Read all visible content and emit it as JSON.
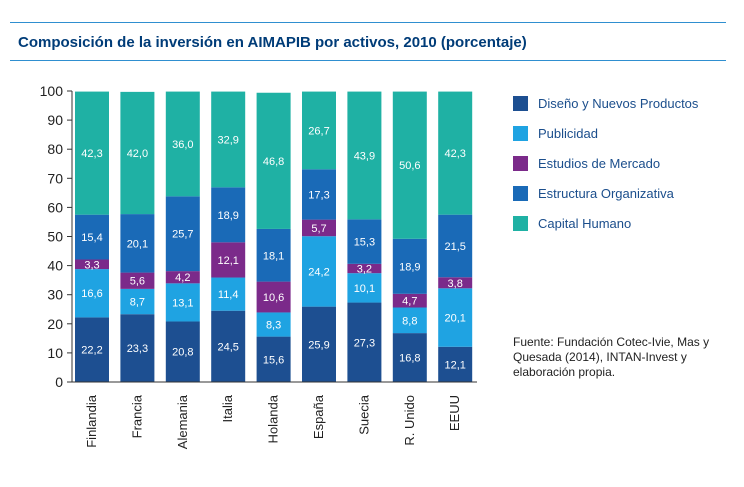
{
  "title": "Composición de la inversión en AIMAPIB por activos, 2010 (porcentaje)",
  "source": "Fuente: Fundación Cotec-Ivie, Mas y Quesada (2014), INTAN-Invest y elaboración propia.",
  "colors": {
    "rule": "#2f8fd0",
    "title": "#003c78",
    "legend_text": "#1b4e8c",
    "axis": "#333333"
  },
  "chart_data": {
    "type": "bar",
    "stacked": true,
    "title": "Composición de la inversión en AIMAPIB por activos, 2010 (porcentaje)",
    "categories": [
      "Finlandia",
      "Francia",
      "Alemania",
      "Italia",
      "Holanda",
      "España",
      "Suecia",
      "R. Unido",
      "EEUU"
    ],
    "ylim": [
      0,
      100
    ],
    "yticks": [
      0,
      10,
      20,
      30,
      40,
      50,
      60,
      70,
      80,
      90,
      100
    ],
    "grid": false,
    "legend_position": "right",
    "series": [
      {
        "name": "Diseño y Nuevos Productos",
        "color": "#1d4f91",
        "values": [
          22.2,
          23.3,
          20.8,
          24.5,
          15.6,
          25.9,
          27.3,
          16.8,
          12.1
        ],
        "labels": [
          "22,2",
          "23,3",
          "20,8",
          "24,5",
          "15,6",
          "25,9",
          "27,3",
          "16,8",
          "12,1"
        ]
      },
      {
        "name": "Publicidad",
        "color": "#1fa3e2",
        "values": [
          16.6,
          8.7,
          13.1,
          11.4,
          8.3,
          24.2,
          10.1,
          8.8,
          20.1
        ],
        "labels": [
          "16,6",
          "8,7",
          "13,1",
          "11,4",
          "8,3",
          "24,2",
          "10,1",
          "8,8",
          "20,1"
        ]
      },
      {
        "name": "Estudios de Mercado",
        "color": "#7b2a8a",
        "values": [
          3.3,
          5.6,
          4.2,
          12.1,
          10.6,
          5.7,
          3.2,
          4.7,
          3.8
        ],
        "labels": [
          "3,3",
          "5,6",
          "4,2",
          "12,1",
          "10,6",
          "5,7",
          "3,2",
          "4,7",
          "3,8"
        ]
      },
      {
        "name": "Estructura  Organizativa",
        "color": "#1a6ab7",
        "values": [
          15.4,
          20.1,
          25.7,
          18.9,
          18.1,
          17.3,
          15.3,
          18.9,
          21.5
        ],
        "labels": [
          "15,4",
          "20,1",
          "25,7",
          "18,9",
          "18,1",
          "17,3",
          "15,3",
          "18,9",
          "21,5"
        ]
      },
      {
        "name": "Capital Humano",
        "color": "#1fb1a4",
        "values": [
          42.3,
          42.0,
          36.0,
          32.9,
          46.8,
          26.7,
          43.9,
          50.6,
          42.3
        ],
        "labels": [
          "42,3",
          "42,0",
          "36,0",
          "32,9",
          "46,8",
          "26,7",
          "43,9",
          "50,6",
          "42,3"
        ]
      }
    ]
  }
}
